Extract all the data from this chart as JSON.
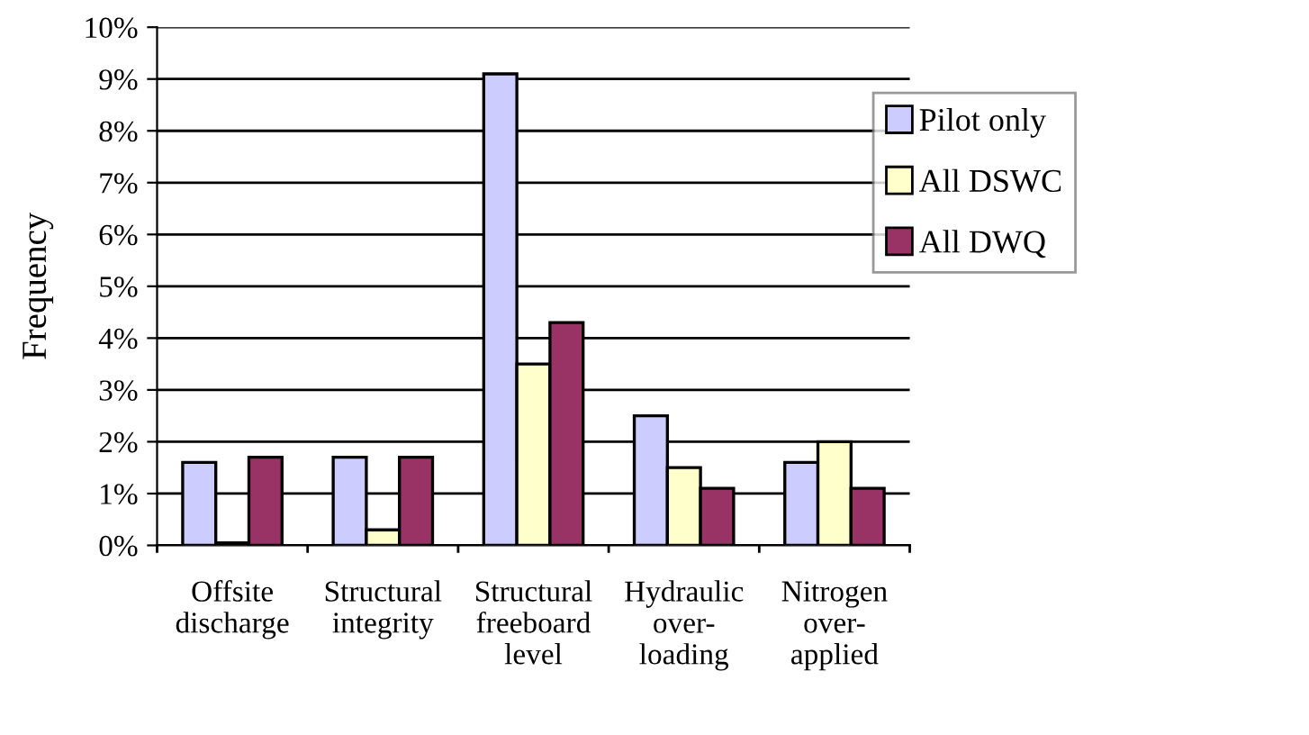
{
  "chart_data": {
    "type": "bar",
    "ylabel": "Frequency",
    "categories": [
      "Offsite\ndischarge",
      "Structural\nintegrity",
      "Structural\nfreeboard\nlevel",
      "Hydraulic\nover-\nloading",
      "Nitrogen\nover-\napplied"
    ],
    "series": [
      {
        "name": "Pilot only",
        "color": "#ccccff",
        "values": [
          1.6,
          1.7,
          9.1,
          2.5,
          1.6
        ]
      },
      {
        "name": "All DSWC",
        "color": "#ffffcc",
        "values": [
          0.05,
          0.3,
          3.5,
          1.5,
          2.0
        ]
      },
      {
        "name": "All DWQ",
        "color": "#993366",
        "values": [
          1.7,
          1.7,
          4.3,
          1.1,
          1.1
        ]
      }
    ],
    "ylim": [
      0,
      10
    ],
    "yticks": [
      {
        "value": 0,
        "label": "0%"
      },
      {
        "value": 1,
        "label": "1%"
      },
      {
        "value": 2,
        "label": "2%"
      },
      {
        "value": 3,
        "label": "3%"
      },
      {
        "value": 4,
        "label": "4%"
      },
      {
        "value": 5,
        "label": "5%"
      },
      {
        "value": 6,
        "label": "6%"
      },
      {
        "value": 7,
        "label": "7%"
      },
      {
        "value": 8,
        "label": "8%"
      },
      {
        "value": 9,
        "label": "9%"
      },
      {
        "value": 10,
        "label": "10%"
      }
    ],
    "grid": "y",
    "legend": "right"
  }
}
